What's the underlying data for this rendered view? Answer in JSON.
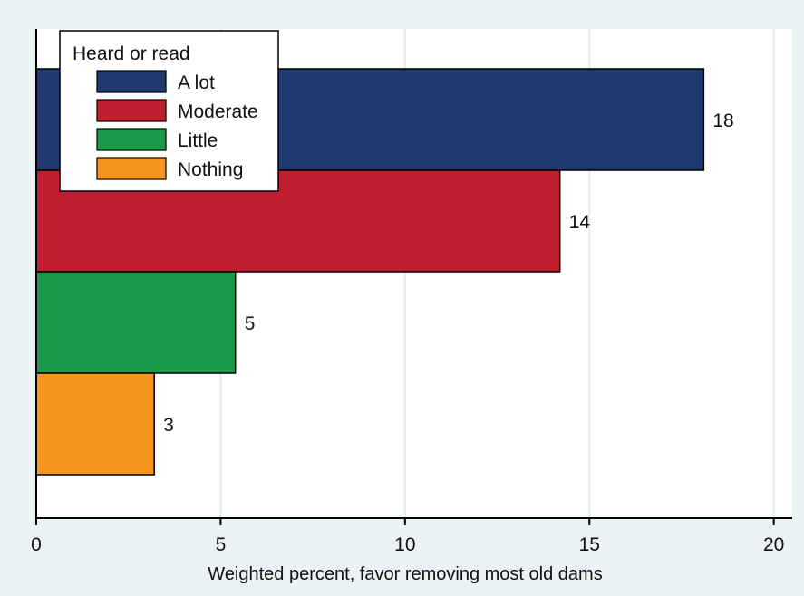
{
  "chart_data": {
    "type": "bar",
    "orientation": "horizontal",
    "xlabel": "Weighted percent, favor removing most old dams",
    "xlim": [
      0,
      20.5
    ],
    "xticks": [
      0,
      5,
      10,
      15,
      20
    ],
    "grid": true,
    "legend": {
      "title": "Heard or read",
      "placement": "top-left"
    },
    "series": [
      {
        "name": "A lot",
        "value": 18.1,
        "label": "18",
        "color": "#1f3a70"
      },
      {
        "name": "Moderate",
        "value": 14.2,
        "label": "14",
        "color": "#be1e2d"
      },
      {
        "name": "Little",
        "value": 5.4,
        "label": "5",
        "color": "#1a9a49"
      },
      {
        "name": "Nothing",
        "value": 3.2,
        "label": "3",
        "color": "#f7941d"
      }
    ],
    "colors": {
      "plot_background": "#ffffff",
      "outer_background": "#eaf2f3",
      "grid": "#e3edf0"
    }
  }
}
